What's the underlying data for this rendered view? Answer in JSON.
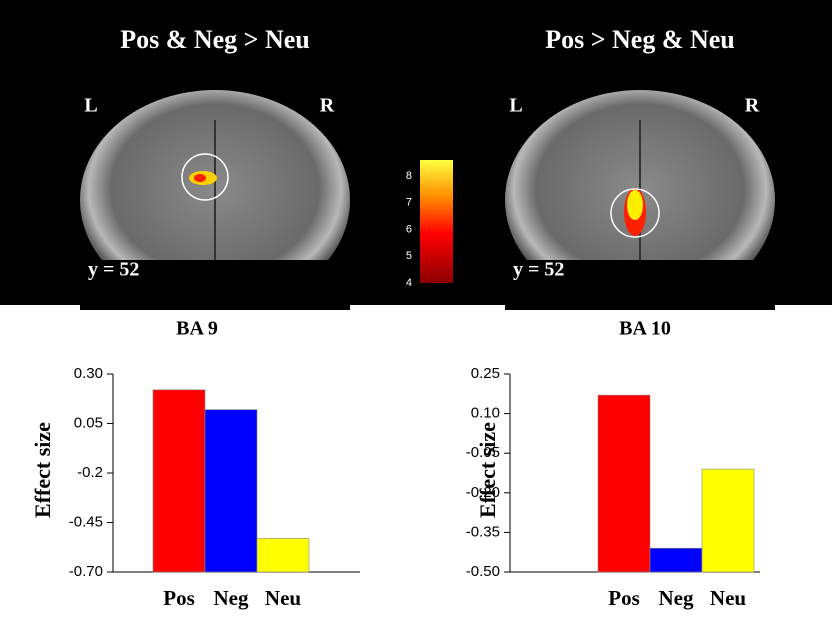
{
  "panels": [
    {
      "title": "Pos & Neg  > Neu",
      "left_label": "L",
      "right_label": "R",
      "slice_label": "y = 52"
    },
    {
      "title": "Pos > Neg & Neu",
      "left_label": "L",
      "right_label": "R",
      "slice_label": "y = 52"
    }
  ],
  "colorbar": {
    "ticks": [
      4,
      5,
      6,
      7,
      8
    ],
    "range": [
      4,
      8.6
    ]
  },
  "chart_data": [
    {
      "type": "bar",
      "title": "BA 9",
      "y_label": "Effect size",
      "categories": [
        "Pos",
        "Neg",
        "Neu"
      ],
      "values": [
        0.22,
        0.12,
        -0.53
      ],
      "colors": [
        "#ff0000",
        "#0000ff",
        "#ffff00"
      ],
      "ylim": [
        -0.7,
        0.3
      ],
      "yticks": [
        {
          "value": -0.7,
          "label": "-0.70"
        },
        -0.45,
        -0.2,
        0.05,
        {
          "value": 0.3,
          "label": "0.30"
        }
      ]
    },
    {
      "type": "bar",
      "title": "BA 10",
      "y_label": "Effect size",
      "categories": [
        "Pos",
        "Neg",
        "Neu"
      ],
      "values": [
        0.17,
        -0.41,
        -0.11
      ],
      "colors": [
        "#ff0000",
        "#0000ff",
        "#ffff00"
      ],
      "ylim": [
        -0.5,
        0.25
      ],
      "yticks": [
        {
          "value": -0.5,
          "label": "-0.50"
        },
        -0.35,
        {
          "value": -0.2,
          "label": "-0.20"
        },
        -0.05,
        {
          "value": 0.1,
          "label": "0.10"
        },
        0.25
      ]
    }
  ]
}
